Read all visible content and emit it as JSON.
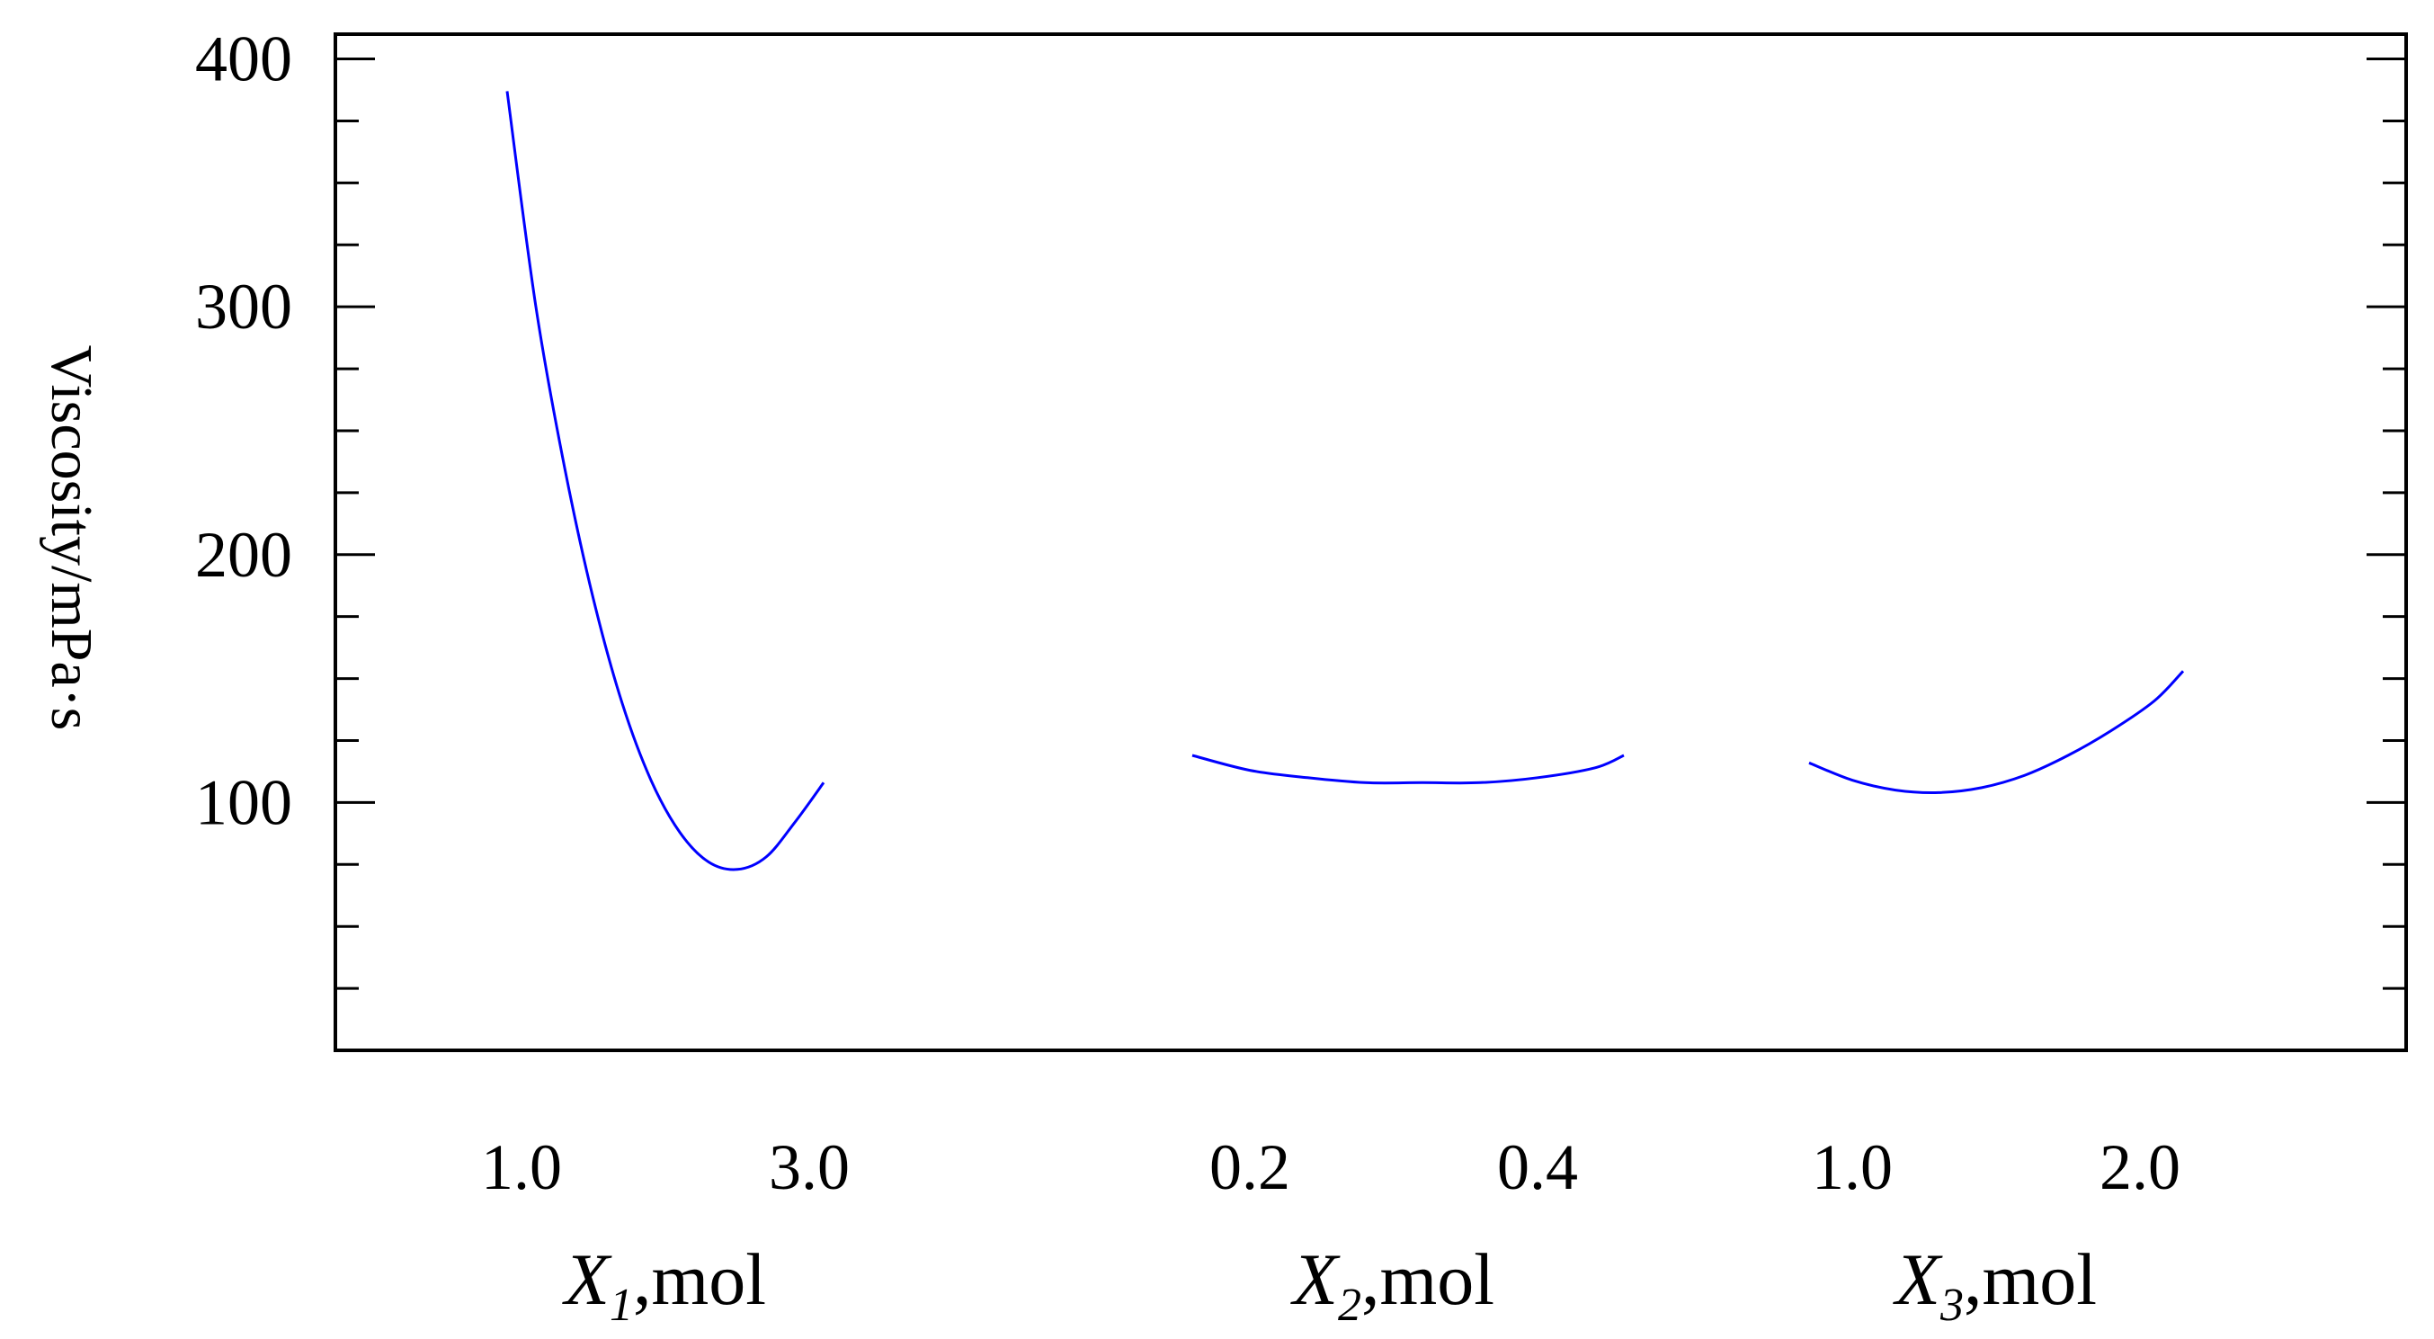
{
  "chart_data": {
    "type": "line",
    "ylabel": "Viscosity/mPa·s",
    "ylim": [
      0,
      410
    ],
    "y_ticks": [
      400,
      300,
      200,
      100
    ],
    "y_tick_labels": [
      "400",
      "300",
      "200",
      "100"
    ],
    "y_minor_step": 25,
    "grid": false,
    "legend": "none",
    "line_color": "#0000ff",
    "panels": [
      {
        "xlabel_var": "X",
        "xlabel_sub": "1",
        "xlabel_unit": ",mol",
        "xlim": [
          0.0,
          4.0
        ],
        "x_ticks": [
          1.0,
          3.0
        ],
        "x_tick_labels": [
          "1.0",
          "3.0"
        ],
        "x": [
          0.9,
          1.1,
          1.3,
          1.5,
          1.7,
          1.9,
          2.1,
          2.3,
          2.5,
          2.7,
          2.9,
          3.1
        ],
        "y": [
          387,
          300,
          235,
          182,
          140,
          109,
          88,
          76,
          73,
          78,
          92,
          108
        ]
      },
      {
        "xlabel_var": "X",
        "xlabel_sub": "2",
        "xlabel_unit": ",mol",
        "xlim": [
          0.1,
          0.5
        ],
        "x_ticks": [
          0.2,
          0.4
        ],
        "x_tick_labels": [
          "0.2",
          "0.4"
        ],
        "x": [
          0.16,
          0.2,
          0.24,
          0.28,
          0.32,
          0.36,
          0.4,
          0.44,
          0.46
        ],
        "y": [
          119,
          113,
          110,
          108,
          108,
          108,
          110,
          114,
          119
        ]
      },
      {
        "xlabel_var": "X",
        "xlabel_sub": "3",
        "xlabel_unit": ",mol",
        "xlim": [
          0.5,
          2.5
        ],
        "x_ticks": [
          1.0,
          2.0
        ],
        "x_tick_labels": [
          "1.0",
          "2.0"
        ],
        "x": [
          0.85,
          1.0,
          1.15,
          1.3,
          1.45,
          1.6,
          1.75,
          1.9,
          2.05,
          2.15
        ],
        "y": [
          116,
          109,
          105,
          104,
          106,
          111,
          119,
          129,
          141,
          153
        ]
      }
    ]
  }
}
